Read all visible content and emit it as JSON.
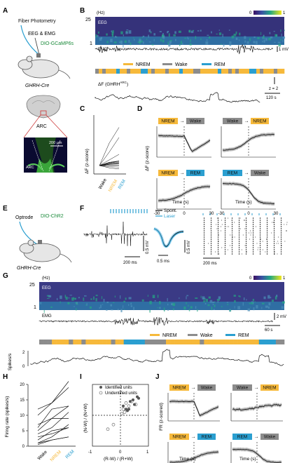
{
  "panels": {
    "A": {
      "letter": "A",
      "fiber": "Fiber Photometry",
      "eegemg": "EEG & EMG",
      "virus": "DIO-GCaMP6s",
      "mouse": "GHRH-Cre",
      "region": "ARC",
      "scale": "200 µm",
      "region_label": "ARC"
    },
    "B": {
      "letter": "B",
      "unit": "(Hz)",
      "ymax": "25",
      "ymin": "1",
      "cb_min": "0",
      "cb_max": "1",
      "eeg": "EEG",
      "emg": "EMG",
      "emg_scale": "1 mV",
      "z": "z = 2",
      "time": "120 s",
      "trace": "ΔF (GHRH",
      "trace_sup": "ARC",
      "trace_end": ")"
    },
    "C": {
      "letter": "C",
      "ylabel": "ΔF (z-score)",
      "cats": [
        "Wake",
        "NREM",
        "REM"
      ]
    },
    "D": {
      "letter": "D",
      "ylabel": "ΔF (z-score)",
      "xlabel": "Time (s)",
      "ticks": [
        "-30",
        "0",
        "30"
      ]
    },
    "E": {
      "letter": "E",
      "optrode": "Optrode",
      "virus": "DIO-ChR2",
      "mouse": "GHRH-Cre"
    },
    "F": {
      "letter": "F",
      "spont": "Spont.",
      "laser": "Laser",
      "s1": "200 ms",
      "s2": "0.5 mV",
      "s3": "0.5 ms",
      "s4": "0.5 mV",
      "s5": "200 ms"
    },
    "G": {
      "letter": "G",
      "unit": "(Hz)",
      "ymax": "25",
      "ymin": "1",
      "cb_min": "0",
      "cb_max": "1",
      "eeg": "EEG",
      "emg": "EMG",
      "emg_scale": "2 mV",
      "time": "60 s",
      "spikes": "Spikes/s",
      "ticks": [
        "2",
        "0"
      ]
    },
    "H": {
      "letter": "H",
      "ylabel": "Firing rate (spikes/s)",
      "ticks": [
        "0",
        "5",
        "10",
        "15",
        "20"
      ],
      "cats": [
        "Wake",
        "NREM",
        "REM"
      ]
    },
    "I": {
      "letter": "I",
      "xlabel": "(R-W) / (R+W)",
      "ylabel": "(N-W) / (N+W)",
      "leg1": "Identified units",
      "leg2": "Unidentified units",
      "ticks": [
        "-1",
        "0",
        "1"
      ]
    },
    "J": {
      "letter": "J",
      "ylabel": "FR (z-scored)",
      "xlabel": "Time (s)",
      "ticks": [
        "-30",
        "0",
        "30"
      ]
    }
  },
  "states": {
    "nrem": "NREM",
    "wake": "Wake",
    "rem": "REM",
    "arrow": "→"
  },
  "legend": {
    "nrem": "NREM",
    "wake": "Wake",
    "rem": "REM"
  },
  "colors": {
    "nrem": "#f6b93b",
    "wake": "#8c8c8c",
    "rem": "#2b9fd0",
    "brain": "#3aa53a"
  },
  "chart_data": [
    {
      "type": "line",
      "panel": "C",
      "categories": [
        "Wake",
        "NREM",
        "REM"
      ],
      "series": [
        {
          "values": [
            0,
            0.2,
            0.4
          ]
        },
        {
          "values": [
            0,
            0.5,
            1.0
          ]
        },
        {
          "values": [
            0,
            1.2,
            2.5
          ]
        },
        {
          "values": [
            0,
            2.0,
            3.4
          ]
        },
        {
          "values": [
            0,
            0.1,
            0.2
          ]
        },
        {
          "values": [
            0,
            -0.2,
            -0.3
          ]
        }
      ]
    },
    {
      "type": "line",
      "panel": "H",
      "categories": [
        "Wake",
        "NREM",
        "REM"
      ],
      "ylim": [
        0,
        20
      ],
      "series": [
        {
          "values": [
            10,
            14,
            21
          ]
        },
        {
          "values": [
            7,
            9,
            13
          ]
        },
        {
          "values": [
            12,
            14,
            19
          ]
        },
        {
          "values": [
            4,
            6,
            11
          ]
        },
        {
          "values": [
            5,
            9,
            9
          ]
        },
        {
          "values": [
            2,
            5,
            6
          ]
        },
        {
          "values": [
            1,
            3,
            7
          ]
        },
        {
          "values": [
            3,
            4,
            6
          ]
        },
        {
          "values": [
            6,
            12,
            13
          ]
        },
        {
          "values": [
            0.5,
            2,
            3
          ]
        },
        {
          "values": [
            1,
            2,
            3
          ]
        }
      ]
    },
    {
      "type": "scatter",
      "panel": "I",
      "xlim": [
        -1,
        1
      ],
      "ylim": [
        -1,
        1
      ],
      "series": [
        {
          "name": "Identified units",
          "points": [
            [
              0.1,
              0.3
            ],
            [
              0.2,
              0.2
            ],
            [
              0.35,
              0.45
            ],
            [
              0.5,
              0.35
            ],
            [
              0.65,
              0.55
            ],
            [
              0.3,
              0.2
            ],
            [
              0.45,
              0.5
            ],
            [
              0.6,
              0.6
            ],
            [
              0.25,
              0.15
            ]
          ]
        },
        {
          "name": "Unidentified units",
          "points": [
            [
              0.05,
              0.05
            ],
            [
              0.15,
              0.1
            ],
            [
              0.3,
              0.3
            ],
            [
              0.4,
              0.45
            ],
            [
              -0.25,
              -0.3
            ],
            [
              -0.45,
              -0.45
            ],
            [
              0.2,
              0.4
            ],
            [
              0.55,
              0.35
            ],
            [
              0.1,
              0.2
            ]
          ]
        }
      ]
    }
  ]
}
